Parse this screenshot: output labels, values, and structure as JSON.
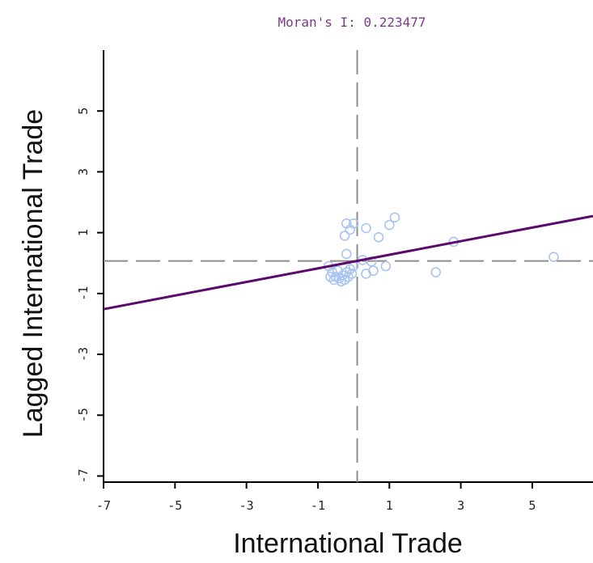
{
  "chart_data": {
    "type": "scatter",
    "title": "Moran's I: 0.223477",
    "xlabel": "International Trade",
    "ylabel": "Lagged International Trade",
    "xlim": [
      -7,
      6.7
    ],
    "ylim": [
      -7.2,
      7
    ],
    "xticks": [
      -7,
      -5,
      -3,
      -1,
      1,
      3,
      5
    ],
    "yticks": [
      -7,
      -5,
      -3,
      -1,
      1,
      3,
      5
    ],
    "xtick_labels": [
      "-7",
      "-5",
      "-3",
      "-1",
      "1",
      "3",
      "5"
    ],
    "ytick_labels": [
      "-7",
      "-5",
      "-3",
      "-1",
      "1",
      "3",
      "5"
    ],
    "mean_x": 0.1,
    "mean_y": 0.07,
    "regression": {
      "slope": 0.223477,
      "intercept": 0.05,
      "color": "#5a0a6a"
    },
    "points_color": "#a9c4f2",
    "guide_color": "#8c8c8c",
    "points": [
      {
        "x": -0.2,
        "y": 1.3
      },
      {
        "x": 0.0,
        "y": 1.3
      },
      {
        "x": -0.1,
        "y": 1.1
      },
      {
        "x": 0.35,
        "y": 1.15
      },
      {
        "x": 1.0,
        "y": 1.25
      },
      {
        "x": 1.15,
        "y": 1.5
      },
      {
        "x": -0.25,
        "y": 0.9
      },
      {
        "x": 0.7,
        "y": 0.85
      },
      {
        "x": 2.8,
        "y": 0.7
      },
      {
        "x": -0.2,
        "y": 0.3
      },
      {
        "x": 0.25,
        "y": 0.1
      },
      {
        "x": 0.5,
        "y": 0.05
      },
      {
        "x": 0.9,
        "y": -0.1
      },
      {
        "x": 0.55,
        "y": -0.25
      },
      {
        "x": 0.35,
        "y": -0.35
      },
      {
        "x": 5.6,
        "y": 0.2
      },
      {
        "x": 2.3,
        "y": -0.3
      },
      {
        "x": -0.7,
        "y": -0.1
      },
      {
        "x": -0.6,
        "y": -0.3
      },
      {
        "x": -0.5,
        "y": -0.45
      },
      {
        "x": -0.4,
        "y": -0.5
      },
      {
        "x": -0.3,
        "y": -0.4
      },
      {
        "x": -0.2,
        "y": -0.3
      },
      {
        "x": -0.1,
        "y": -0.2
      },
      {
        "x": 0.0,
        "y": -0.1
      },
      {
        "x": -0.55,
        "y": -0.55
      },
      {
        "x": -0.35,
        "y": -0.6
      },
      {
        "x": -0.15,
        "y": -0.45
      },
      {
        "x": -0.45,
        "y": -0.25
      },
      {
        "x": -0.25,
        "y": -0.55
      },
      {
        "x": -0.05,
        "y": -0.35
      },
      {
        "x": -0.65,
        "y": -0.45
      }
    ]
  }
}
